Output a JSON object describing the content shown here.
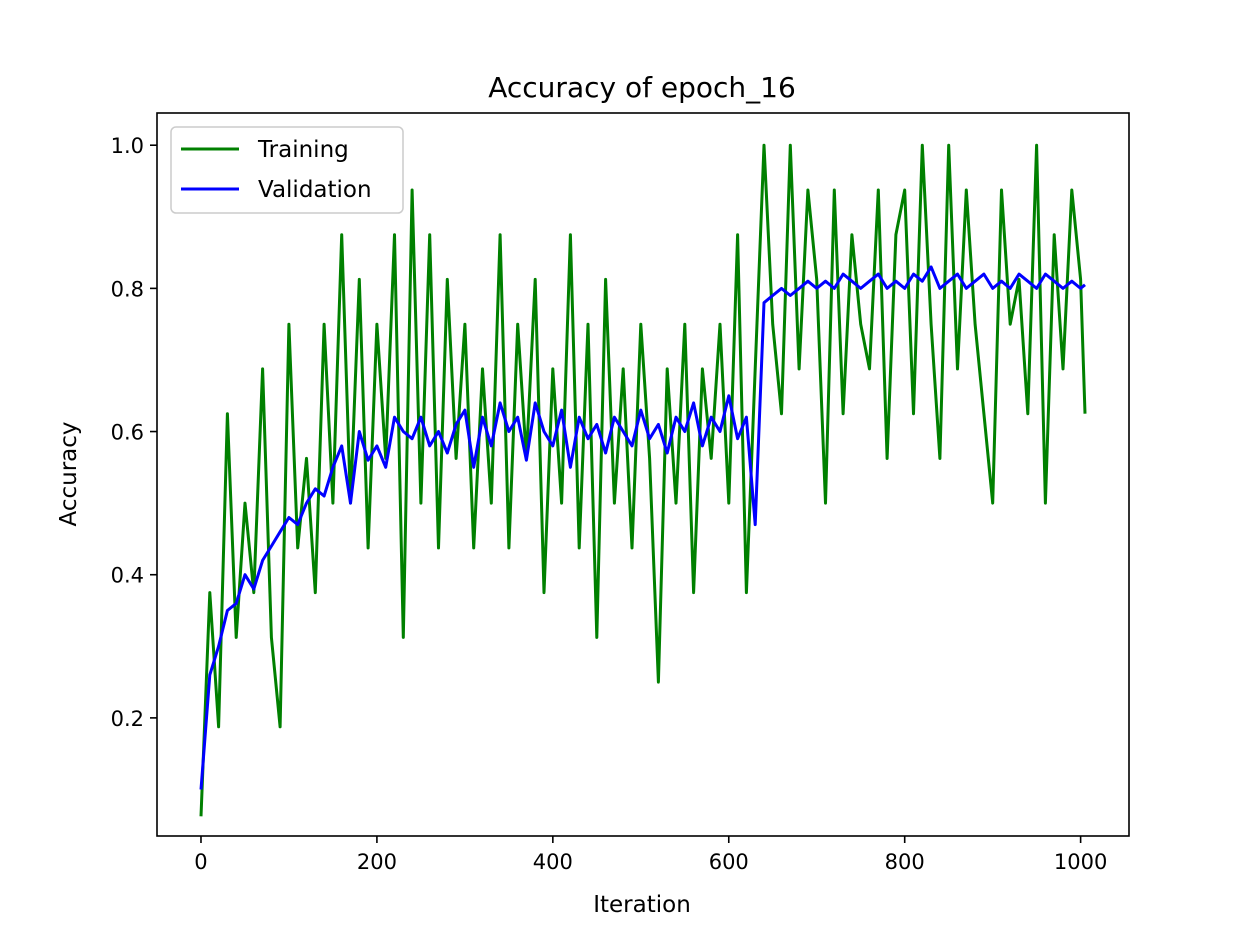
{
  "chart_data": {
    "type": "line",
    "title": "Accuracy of epoch_16",
    "xlabel": "Iteration",
    "ylabel": "Accuracy",
    "xlim": [
      -50,
      1055
    ],
    "ylim": [
      0.035,
      1.045
    ],
    "xticks": [
      0,
      200,
      400,
      600,
      800,
      1000
    ],
    "xtick_labels": [
      "0",
      "200",
      "400",
      "600",
      "800",
      "1000"
    ],
    "yticks": [
      0.2,
      0.4,
      0.6,
      0.8,
      1.0
    ],
    "ytick_labels": [
      "0.2",
      "0.4",
      "0.6",
      "0.8",
      "1.0"
    ],
    "grid": false,
    "legend_position": "top-left",
    "series": [
      {
        "name": "Training",
        "color": "#008000",
        "x": [
          0,
          10,
          20,
          30,
          40,
          50,
          60,
          70,
          80,
          90,
          100,
          110,
          120,
          130,
          140,
          150,
          160,
          170,
          180,
          190,
          200,
          210,
          220,
          230,
          240,
          250,
          260,
          270,
          280,
          290,
          300,
          310,
          320,
          330,
          340,
          350,
          360,
          370,
          380,
          390,
          400,
          410,
          420,
          430,
          440,
          450,
          460,
          470,
          480,
          490,
          500,
          510,
          520,
          530,
          540,
          550,
          560,
          570,
          580,
          590,
          600,
          610,
          620,
          630,
          640,
          650,
          660,
          670,
          680,
          690,
          700,
          710,
          720,
          730,
          740,
          750,
          760,
          770,
          780,
          790,
          800,
          810,
          820,
          830,
          840,
          850,
          860,
          870,
          880,
          890,
          900,
          910,
          920,
          930,
          940,
          950,
          960,
          970,
          980,
          990,
          1000,
          1005
        ],
        "values": [
          0.0625,
          0.375,
          0.1875,
          0.625,
          0.3125,
          0.5,
          0.375,
          0.6875,
          0.3125,
          0.1875,
          0.75,
          0.4375,
          0.5625,
          0.375,
          0.75,
          0.5,
          0.875,
          0.5,
          0.8125,
          0.4375,
          0.75,
          0.5625,
          0.875,
          0.3125,
          0.9375,
          0.5,
          0.875,
          0.4375,
          0.8125,
          0.5625,
          0.75,
          0.4375,
          0.6875,
          0.5,
          0.875,
          0.4375,
          0.75,
          0.5625,
          0.8125,
          0.375,
          0.6875,
          0.5,
          0.875,
          0.4375,
          0.75,
          0.3125,
          0.8125,
          0.5,
          0.6875,
          0.4375,
          0.75,
          0.5625,
          0.25,
          0.6875,
          0.5,
          0.75,
          0.375,
          0.6875,
          0.5625,
          0.75,
          0.5,
          0.875,
          0.375,
          0.6875,
          1.0,
          0.75,
          0.625,
          1.0,
          0.6875,
          0.9375,
          0.8125,
          0.5,
          0.9375,
          0.625,
          0.875,
          0.75,
          0.6875,
          0.9375,
          0.5625,
          0.875,
          0.9375,
          0.625,
          1.0,
          0.75,
          0.5625,
          1.0,
          0.6875,
          0.9375,
          0.75,
          0.625,
          0.5,
          0.9375,
          0.75,
          0.8125,
          0.625,
          1.0,
          0.5,
          0.875,
          0.6875,
          0.9375,
          0.8125,
          0.625
        ]
      },
      {
        "name": "Validation",
        "color": "#0000ff",
        "x": [
          0,
          10,
          20,
          30,
          40,
          50,
          60,
          70,
          80,
          90,
          100,
          110,
          120,
          130,
          140,
          150,
          160,
          170,
          180,
          190,
          200,
          210,
          220,
          230,
          240,
          250,
          260,
          270,
          280,
          290,
          300,
          310,
          320,
          330,
          340,
          350,
          360,
          370,
          380,
          390,
          400,
          410,
          420,
          430,
          440,
          450,
          460,
          470,
          480,
          490,
          500,
          510,
          520,
          530,
          540,
          550,
          560,
          570,
          580,
          590,
          600,
          610,
          620,
          630,
          640,
          650,
          660,
          670,
          680,
          690,
          700,
          710,
          720,
          730,
          740,
          750,
          760,
          770,
          780,
          790,
          800,
          810,
          820,
          830,
          840,
          850,
          860,
          870,
          880,
          890,
          900,
          910,
          920,
          930,
          940,
          950,
          960,
          970,
          980,
          990,
          1000,
          1005
        ],
        "values": [
          0.1,
          0.26,
          0.3,
          0.35,
          0.36,
          0.4,
          0.38,
          0.42,
          0.44,
          0.46,
          0.48,
          0.47,
          0.5,
          0.52,
          0.51,
          0.55,
          0.58,
          0.5,
          0.6,
          0.56,
          0.58,
          0.55,
          0.62,
          0.6,
          0.59,
          0.62,
          0.58,
          0.6,
          0.57,
          0.61,
          0.63,
          0.55,
          0.62,
          0.58,
          0.64,
          0.6,
          0.62,
          0.56,
          0.64,
          0.6,
          0.58,
          0.63,
          0.55,
          0.62,
          0.59,
          0.61,
          0.57,
          0.62,
          0.6,
          0.58,
          0.63,
          0.59,
          0.61,
          0.57,
          0.62,
          0.6,
          0.64,
          0.58,
          0.62,
          0.6,
          0.65,
          0.59,
          0.62,
          0.47,
          0.78,
          0.79,
          0.8,
          0.79,
          0.8,
          0.81,
          0.8,
          0.81,
          0.8,
          0.82,
          0.81,
          0.8,
          0.81,
          0.82,
          0.8,
          0.81,
          0.8,
          0.82,
          0.81,
          0.83,
          0.8,
          0.81,
          0.82,
          0.8,
          0.81,
          0.82,
          0.8,
          0.81,
          0.8,
          0.82,
          0.81,
          0.8,
          0.82,
          0.81,
          0.8,
          0.81,
          0.8,
          0.805
        ]
      }
    ]
  }
}
